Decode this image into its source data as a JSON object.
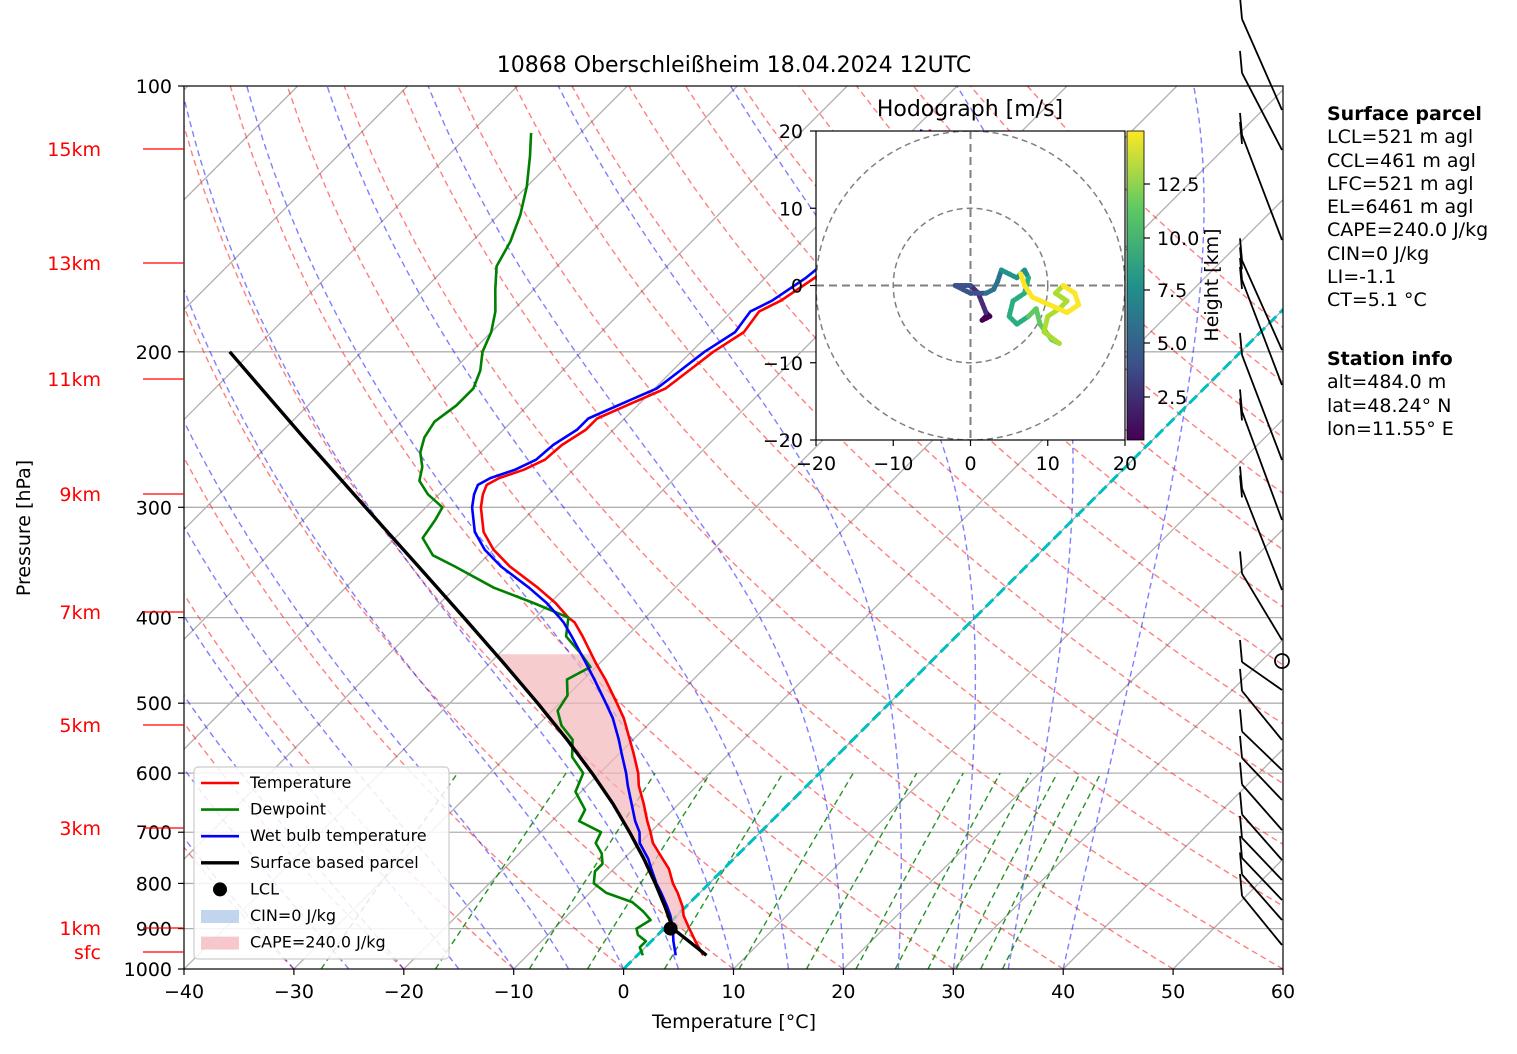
{
  "title": "10868 Oberschleißheim 18.04.2024 12UTC",
  "xlabel": "Temperature [°C]",
  "ylabel": "Pressure [hPa]",
  "height_labels": [
    "15km",
    "13km",
    "11km",
    "9km",
    "7km",
    "5km",
    "3km",
    "1km",
    "sfc"
  ],
  "hodograph": {
    "title": "Hodograph [m/s]",
    "colorbar_label": "Height [km]",
    "colorbar_ticks": [
      "2.5",
      "5.0",
      "7.5",
      "10.0",
      "12.5"
    ]
  },
  "legend": [
    {
      "label": "Temperature",
      "color": "#ff0000",
      "kind": "line"
    },
    {
      "label": "Dewpoint",
      "color": "#008000",
      "kind": "line"
    },
    {
      "label": "Wet bulb temperature",
      "color": "#0000ff",
      "kind": "line"
    },
    {
      "label": "Surface based parcel",
      "color": "#000000",
      "kind": "line"
    },
    {
      "label": "LCL",
      "color": "#000000",
      "kind": "dot"
    },
    {
      "label": "CIN=0 J/kg",
      "color": "#aec7e8",
      "kind": "patch"
    },
    {
      "label": "CAPE=240.0 J/kg",
      "color": "#f4b6ba",
      "kind": "patch"
    }
  ],
  "surface_parcel": {
    "header": "Surface parcel",
    "lines": [
      "LCL=521 m agl",
      "CCL=461 m agl",
      "LFC=521 m agl",
      "EL=6461 m agl",
      "CAPE=240.0 J/kg",
      "CIN=0 J/kg",
      "LI=-1.1",
      "CT=5.1 °C"
    ]
  },
  "station_info": {
    "header": "Station info",
    "lines": [
      "alt=484.0 m",
      "lat=48.24° N",
      "lon=11.55° E"
    ]
  },
  "chart_data": {
    "type": "line",
    "title": "10868 Oberschleißheim 18.04.2024 12UTC",
    "xlabel": "Temperature [°C]",
    "ylabel": "Pressure [hPa]",
    "xlim": [
      -40,
      60
    ],
    "ylim": [
      1000,
      100
    ],
    "y_scale": "log",
    "x_ticks": [
      -40,
      -30,
      -20,
      -10,
      0,
      10,
      20,
      30,
      40,
      50,
      60
    ],
    "y_ticks": [
      1000,
      900,
      800,
      700,
      600,
      500,
      400,
      300,
      200,
      100
    ],
    "series": [
      {
        "name": "Temperature",
        "color": "#ff0000",
        "points": [
          [
            965,
            6.0
          ],
          [
            930,
            4.0
          ],
          [
            900,
            2.3
          ],
          [
            870,
            0.6
          ],
          [
            850,
            -0.3
          ],
          [
            820,
            -2.0
          ],
          [
            800,
            -3.3
          ],
          [
            770,
            -5.0
          ],
          [
            750,
            -6.5
          ],
          [
            720,
            -8.8
          ],
          [
            700,
            -10.0
          ],
          [
            680,
            -11.3
          ],
          [
            650,
            -13.2
          ],
          [
            620,
            -15.3
          ],
          [
            600,
            -16.5
          ],
          [
            570,
            -18.7
          ],
          [
            550,
            -20.3
          ],
          [
            520,
            -22.8
          ],
          [
            500,
            -24.8
          ],
          [
            470,
            -28.0
          ],
          [
            450,
            -30.4
          ],
          [
            420,
            -34.0
          ],
          [
            405,
            -36.0
          ],
          [
            400,
            -37.0
          ],
          [
            385,
            -39.5
          ],
          [
            370,
            -42.5
          ],
          [
            350,
            -47.0
          ],
          [
            335,
            -50.0
          ],
          [
            320,
            -52.5
          ],
          [
            300,
            -55.0
          ],
          [
            290,
            -56.0
          ],
          [
            283,
            -56.5
          ],
          [
            278,
            -56.0
          ],
          [
            272,
            -54.5
          ],
          [
            265,
            -53.5
          ],
          [
            255,
            -53.3
          ],
          [
            245,
            -52.5
          ],
          [
            238,
            -52.5
          ],
          [
            230,
            -51.0
          ],
          [
            220,
            -49.0
          ],
          [
            210,
            -48.5
          ],
          [
            200,
            -48.0
          ],
          [
            190,
            -47.0
          ],
          [
            180,
            -47.5
          ],
          [
            175,
            -46.5
          ],
          [
            165,
            -45.5
          ],
          [
            155,
            -45.0
          ],
          [
            145,
            -46.5
          ],
          [
            135,
            -46.0
          ],
          [
            125,
            -47.0
          ],
          [
            118,
            -47.0
          ],
          [
            112,
            -48.5
          ]
        ]
      },
      {
        "name": "Dewpoint",
        "color": "#008000",
        "points": [
          [
            965,
            0.5
          ],
          [
            945,
            -0.5
          ],
          [
            930,
            -0.5
          ],
          [
            915,
            -1.8
          ],
          [
            900,
            -2.5
          ],
          [
            880,
            -2.0
          ],
          [
            860,
            -3.5
          ],
          [
            840,
            -5.3
          ],
          [
            820,
            -8.5
          ],
          [
            800,
            -10.5
          ],
          [
            775,
            -11.5
          ],
          [
            760,
            -11.5
          ],
          [
            740,
            -12.5
          ],
          [
            720,
            -14.0
          ],
          [
            700,
            -14.5
          ],
          [
            680,
            -17.5
          ],
          [
            660,
            -18.0
          ],
          [
            630,
            -20.5
          ],
          [
            600,
            -21.5
          ],
          [
            575,
            -24.0
          ],
          [
            550,
            -25.5
          ],
          [
            530,
            -27.8
          ],
          [
            510,
            -29.5
          ],
          [
            490,
            -30.0
          ],
          [
            470,
            -31.5
          ],
          [
            455,
            -30.5
          ],
          [
            440,
            -32.5
          ],
          [
            420,
            -35.5
          ],
          [
            400,
            -37.0
          ],
          [
            385,
            -41.5
          ],
          [
            370,
            -46.5
          ],
          [
            350,
            -52.0
          ],
          [
            340,
            -55.0
          ],
          [
            325,
            -57.5
          ],
          [
            310,
            -58.0
          ],
          [
            300,
            -58.5
          ],
          [
            290,
            -61.0
          ],
          [
            280,
            -63.0
          ],
          [
            270,
            -64.0
          ],
          [
            260,
            -65.5
          ],
          [
            250,
            -66.5
          ],
          [
            240,
            -67.0
          ],
          [
            230,
            -66.5
          ],
          [
            220,
            -66.5
          ],
          [
            210,
            -67.5
          ],
          [
            200,
            -69.0
          ],
          [
            190,
            -70.0
          ],
          [
            180,
            -71.5
          ],
          [
            170,
            -73.5
          ],
          [
            160,
            -75.5
          ],
          [
            150,
            -76.5
          ],
          [
            140,
            -78.0
          ],
          [
            130,
            -80.0
          ],
          [
            120,
            -82.5
          ],
          [
            113,
            -84.5
          ]
        ]
      },
      {
        "name": "Wet bulb temperature",
        "color": "#0000ff",
        "points": [
          [
            965,
            3.5
          ],
          [
            930,
            2.0
          ],
          [
            900,
            0.8
          ],
          [
            870,
            -0.6
          ],
          [
            850,
            -1.7
          ],
          [
            820,
            -3.5
          ],
          [
            800,
            -4.8
          ],
          [
            770,
            -6.6
          ],
          [
            750,
            -7.8
          ],
          [
            720,
            -10.0
          ],
          [
            700,
            -11.0
          ],
          [
            680,
            -12.4
          ],
          [
            650,
            -14.3
          ],
          [
            620,
            -16.3
          ],
          [
            600,
            -17.6
          ],
          [
            570,
            -19.8
          ],
          [
            550,
            -21.3
          ],
          [
            520,
            -23.8
          ],
          [
            500,
            -25.8
          ],
          [
            470,
            -29.0
          ],
          [
            450,
            -31.3
          ],
          [
            420,
            -35.0
          ],
          [
            405,
            -37.0
          ],
          [
            400,
            -37.8
          ],
          [
            385,
            -40.3
          ],
          [
            370,
            -43.3
          ],
          [
            350,
            -47.8
          ],
          [
            335,
            -50.8
          ],
          [
            320,
            -53.3
          ],
          [
            300,
            -55.8
          ],
          [
            290,
            -56.8
          ],
          [
            283,
            -57.3
          ],
          [
            278,
            -56.8
          ],
          [
            272,
            -55.3
          ],
          [
            265,
            -54.3
          ],
          [
            255,
            -54.1
          ],
          [
            245,
            -53.3
          ],
          [
            238,
            -53.3
          ],
          [
            230,
            -51.8
          ],
          [
            220,
            -49.8
          ],
          [
            210,
            -49.3
          ],
          [
            200,
            -48.8
          ],
          [
            190,
            -47.8
          ],
          [
            180,
            -48.3
          ],
          [
            175,
            -47.3
          ],
          [
            165,
            -46.3
          ],
          [
            155,
            -45.8
          ],
          [
            145,
            -47.3
          ],
          [
            135,
            -46.8
          ],
          [
            125,
            -47.8
          ],
          [
            118,
            -47.8
          ],
          [
            112,
            -49.3
          ]
        ]
      },
      {
        "name": "Surface based parcel",
        "color": "#000000",
        "points": [
          [
            965,
            6.3
          ],
          [
            930,
            3.4
          ],
          [
            900,
            0.8
          ],
          [
            850,
            -1.9
          ],
          [
            800,
            -4.9
          ],
          [
            750,
            -8.2
          ],
          [
            700,
            -11.9
          ],
          [
            650,
            -16.0
          ],
          [
            600,
            -20.7
          ],
          [
            550,
            -26.0
          ],
          [
            500,
            -32.0
          ],
          [
            450,
            -38.8
          ],
          [
            400,
            -46.5
          ],
          [
            350,
            -55.3
          ],
          [
            300,
            -65.5
          ],
          [
            250,
            -77.5
          ],
          [
            200,
            -92.0
          ]
        ]
      }
    ],
    "lcl": {
      "pressure": 900,
      "temperature": 0.6
    },
    "cape_j_per_kg": 240.0,
    "cin_j_per_kg": 0
  }
}
